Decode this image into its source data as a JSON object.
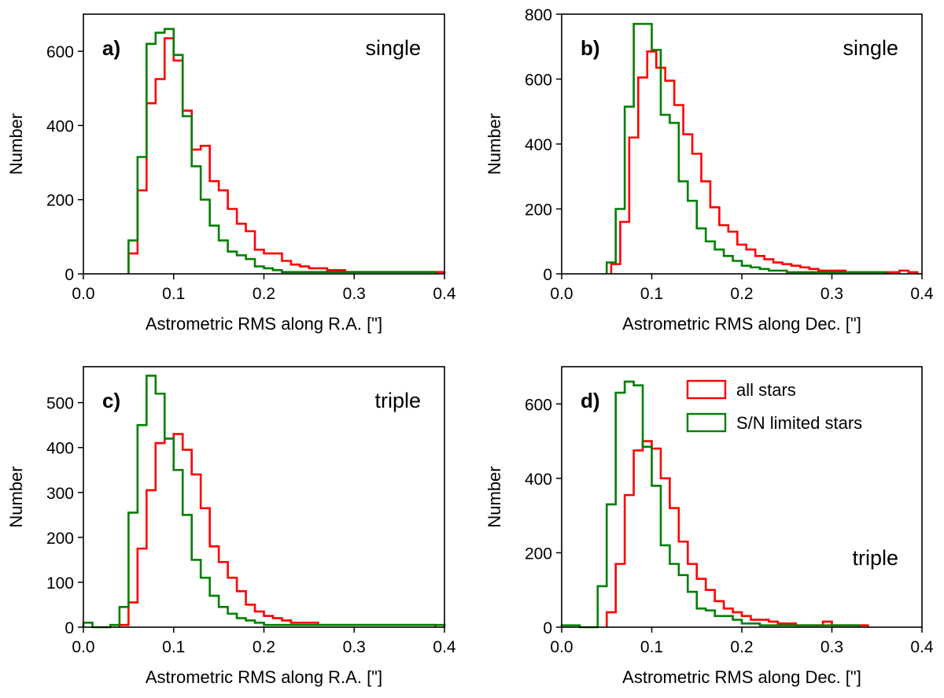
{
  "colors": {
    "all_stars": "#ff0000",
    "sn_limited": "#008000",
    "axes": "#000000",
    "background": "#ffffff"
  },
  "legend": {
    "entries": [
      "all stars",
      "S/N limited stars"
    ],
    "panel": "d",
    "placement": "top-right"
  },
  "chart_data": [
    {
      "type": "histogram",
      "panel_label": "a)",
      "annotation": "single",
      "xlabel": "Astrometric RMS along R.A. [\"]",
      "ylabel": "Number",
      "xlim": [
        0.0,
        0.4
      ],
      "ylim": [
        0,
        700
      ],
      "xticks": [
        "0.0",
        "0.1",
        "0.2",
        "0.3",
        "0.4"
      ],
      "yticks": [
        "0",
        "200",
        "400",
        "600"
      ],
      "grid": false,
      "bin_width": 0.01,
      "series": [
        {
          "name": "all stars",
          "bin_start": 0.05,
          "values": [
            55,
            225,
            460,
            525,
            635,
            575,
            440,
            335,
            345,
            250,
            225,
            175,
            135,
            115,
            65,
            55,
            55,
            35,
            25,
            20,
            15,
            15,
            10,
            10,
            5,
            5,
            5,
            5,
            5,
            5,
            5,
            5,
            5,
            5,
            5
          ]
        },
        {
          "name": "S/N limited stars",
          "bin_start": 0.05,
          "values": [
            90,
            315,
            620,
            650,
            660,
            590,
            425,
            290,
            200,
            130,
            90,
            60,
            50,
            40,
            20,
            15,
            10,
            5,
            5,
            5,
            5,
            5,
            5,
            5,
            5,
            5,
            5,
            5,
            5,
            5,
            5,
            5,
            5,
            5
          ]
        }
      ]
    },
    {
      "type": "histogram",
      "panel_label": "b)",
      "annotation": "single",
      "xlabel": "Astrometric RMS along Dec. [\"]",
      "ylabel": "Number",
      "xlim": [
        0.0,
        0.4
      ],
      "ylim": [
        0,
        800
      ],
      "xticks": [
        "0.0",
        "0.1",
        "0.2",
        "0.3",
        "0.4"
      ],
      "yticks": [
        "0",
        "200",
        "400",
        "600",
        "800"
      ],
      "grid": false,
      "bin_width": 0.01,
      "series": [
        {
          "name": "all stars",
          "bin_start": 0.055,
          "values": [
            30,
            160,
            420,
            605,
            685,
            635,
            595,
            520,
            430,
            370,
            285,
            205,
            150,
            130,
            90,
            75,
            55,
            45,
            35,
            30,
            25,
            20,
            15,
            10,
            10,
            10,
            5,
            5,
            5,
            5,
            5,
            5,
            10,
            5
          ]
        },
        {
          "name": "S/N limited stars",
          "bin_start": 0.05,
          "values": [
            35,
            200,
            515,
            770,
            770,
            690,
            490,
            465,
            285,
            225,
            140,
            100,
            75,
            55,
            40,
            25,
            20,
            15,
            10,
            10,
            5,
            5,
            5,
            5,
            5,
            5,
            5,
            5,
            5,
            5,
            5
          ]
        }
      ]
    },
    {
      "type": "histogram",
      "panel_label": "c)",
      "annotation": "triple",
      "xlabel": "Astrometric RMS along R.A. [\"]",
      "ylabel": "Number",
      "xlim": [
        0.0,
        0.4
      ],
      "ylim": [
        0,
        580
      ],
      "xticks": [
        "0.0",
        "0.1",
        "0.2",
        "0.3",
        "0.4"
      ],
      "yticks": [
        "0",
        "100",
        "200",
        "300",
        "400",
        "500"
      ],
      "grid": false,
      "bin_width": 0.01,
      "series": [
        {
          "name": "all stars",
          "bin_start": 0.04,
          "values": [
            5,
            55,
            175,
            305,
            410,
            420,
            430,
            395,
            340,
            265,
            180,
            145,
            110,
            80,
            50,
            35,
            25,
            20,
            15,
            10,
            10,
            10,
            5,
            5,
            5,
            5,
            5,
            5,
            5,
            5,
            5,
            5,
            5,
            5,
            5
          ]
        },
        {
          "name": "S/N limited stars",
          "bin_start": 0.0,
          "values": [
            10,
            0,
            0,
            5,
            45,
            255,
            450,
            560,
            520,
            420,
            350,
            250,
            150,
            110,
            70,
            45,
            30,
            20,
            15,
            10,
            5,
            5,
            5,
            5,
            5,
            5,
            5,
            5,
            5,
            5,
            5,
            5,
            5,
            5,
            5,
            5,
            5,
            5,
            5,
            5
          ]
        }
      ]
    },
    {
      "type": "histogram",
      "panel_label": "d)",
      "annotation": "triple",
      "xlabel": "Astrometric RMS along Dec. [\"]",
      "ylabel": "Number",
      "xlim": [
        0.0,
        0.4
      ],
      "ylim": [
        0,
        700
      ],
      "xticks": [
        "0.0",
        "0.1",
        "0.2",
        "0.3",
        "0.4"
      ],
      "yticks": [
        "0",
        "200",
        "400",
        "600"
      ],
      "grid": false,
      "bin_width": 0.01,
      "series": [
        {
          "name": "all stars",
          "bin_start": 0.05,
          "values": [
            40,
            170,
            355,
            475,
            500,
            480,
            400,
            320,
            230,
            170,
            130,
            100,
            70,
            50,
            40,
            30,
            20,
            20,
            15,
            10,
            10,
            5,
            5,
            5,
            15,
            5,
            5,
            5,
            5
          ]
        },
        {
          "name": "S/N limited stars",
          "bin_start": 0.0,
          "values": [
            5,
            5,
            0,
            0,
            110,
            330,
            630,
            660,
            650,
            485,
            380,
            220,
            170,
            140,
            95,
            50,
            45,
            30,
            30,
            20,
            10,
            10,
            5,
            5,
            5,
            5,
            5,
            5,
            5,
            5,
            5,
            5,
            5
          ]
        }
      ]
    }
  ]
}
